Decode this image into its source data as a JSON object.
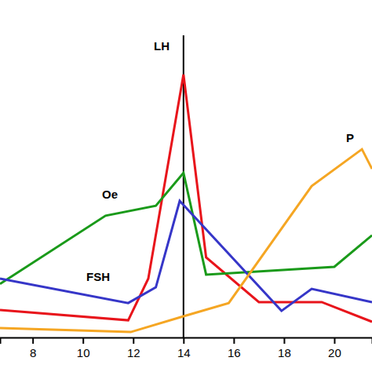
{
  "chart_data": {
    "type": "line",
    "xlim": [
      6.7,
      21.5
    ],
    "ylim": [
      0,
      100
    ],
    "xticks": [
      8,
      10,
      12,
      14,
      16,
      18,
      20
    ],
    "tick_labels": "x",
    "grid": false,
    "annotations": [
      {
        "type": "vline",
        "x": 14
      }
    ],
    "series": [
      {
        "name": "LH",
        "color": "#e8141b",
        "x": [
          6.7,
          11.8,
          12.6,
          14,
          14.9,
          17,
          19.5,
          21.5
        ],
        "values": [
          9.1,
          5.7,
          19.5,
          87,
          26.5,
          11.7,
          11.7,
          5.2
        ]
      },
      {
        "name": "Oe",
        "color": "#1a9a1a",
        "x": [
          6.7,
          10.9,
          12.9,
          14,
          14.9,
          20,
          21.5
        ],
        "values": [
          17.7,
          40.3,
          43.6,
          54.5,
          20.8,
          23.4,
          33.8
        ]
      },
      {
        "name": "FSH",
        "color": "#3636c8",
        "x": [
          6.7,
          11.8,
          12.9,
          13.85,
          17.9,
          19.1,
          21.5
        ],
        "values": [
          19.5,
          11.4,
          16.6,
          45.2,
          8.8,
          16.1,
          11.7
        ]
      },
      {
        "name": "P",
        "color": "#f5a623",
        "x": [
          6.7,
          11.9,
          14,
          15.8,
          19.1,
          21.1,
          21.5
        ],
        "values": [
          3.1,
          1.8,
          7,
          11.4,
          50.1,
          62.3,
          55.8
        ]
      }
    ]
  }
}
